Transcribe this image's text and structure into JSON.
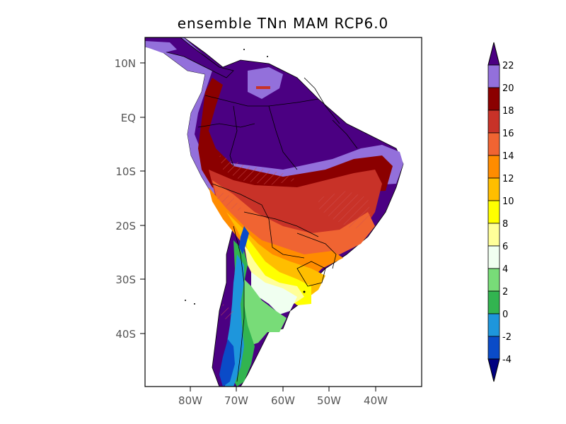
{
  "title": "ensemble TNn MAM RCP6.0",
  "lat_ticks": [
    "10N",
    "EQ",
    "10S",
    "20S",
    "30S",
    "40S"
  ],
  "lon_ticks": [
    "80W",
    "70W",
    "60W",
    "50W",
    "40W"
  ],
  "colorbar": {
    "levels": [
      "22",
      "20",
      "18",
      "16",
      "14",
      "12",
      "10",
      "8",
      "6",
      "4",
      "2",
      "0",
      "-2",
      "-4"
    ],
    "colors": [
      "#4b0082",
      "#9370db",
      "#8b0000",
      "#c83228",
      "#f06432",
      "#ff8c00",
      "#ffbe00",
      "#ffff00",
      "#ffff99",
      "#f0fff0",
      "#78dc78",
      "#32b450",
      "#1e96dc",
      "#0a4bc8",
      "#000080"
    ]
  }
}
